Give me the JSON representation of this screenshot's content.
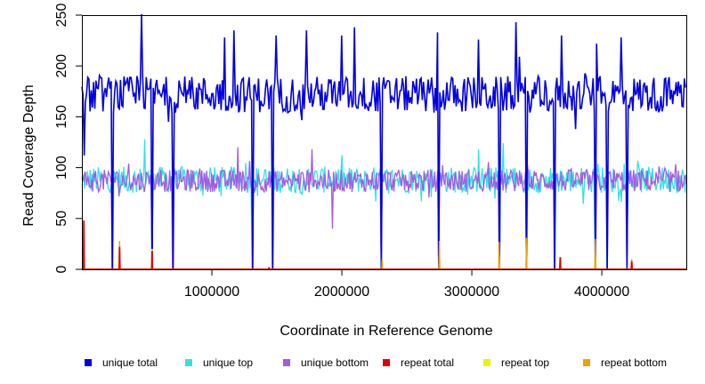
{
  "chart_data": {
    "type": "line",
    "title": "",
    "xlabel": "Coordinate in Reference Genome",
    "ylabel": "Read Coverage Depth",
    "xlim": [
      0,
      4650000
    ],
    "ylim": [
      0,
      250
    ],
    "xticks": [
      1000000,
      2000000,
      3000000,
      4000000
    ],
    "xtick_labels": [
      "1000000",
      "2000000",
      "3000000",
      "4000000"
    ],
    "yticks": [
      0,
      50,
      100,
      150,
      200,
      250
    ],
    "ytick_labels": [
      "0",
      "50",
      "100",
      "150",
      "200",
      "250"
    ],
    "grid": false,
    "legend_position": "bottom",
    "series": [
      {
        "name": "unique total",
        "color": "#0000e0",
        "base": 172,
        "jitter": 18,
        "period": 9000,
        "dips": [
          {
            "x": 20000,
            "y": 112
          },
          {
            "x": 235000,
            "y": 0
          },
          {
            "x": 540000,
            "y": 0
          },
          {
            "x": 700000,
            "y": 0
          },
          {
            "x": 1310000,
            "y": 0
          },
          {
            "x": 1470000,
            "y": 0
          },
          {
            "x": 2300000,
            "y": 0
          },
          {
            "x": 2745000,
            "y": 0
          },
          {
            "x": 3210000,
            "y": 0
          },
          {
            "x": 3420000,
            "y": 0
          },
          {
            "x": 3640000,
            "y": 0
          },
          {
            "x": 3950000,
            "y": 0
          },
          {
            "x": 4040000,
            "y": 0
          },
          {
            "x": 4195000,
            "y": 0
          }
        ],
        "peaks": [
          {
            "x": 460000,
            "y": 251
          },
          {
            "x": 1100000,
            "y": 228
          },
          {
            "x": 1170000,
            "y": 235
          },
          {
            "x": 1490000,
            "y": 230
          },
          {
            "x": 1730000,
            "y": 235
          },
          {
            "x": 2000000,
            "y": 230
          },
          {
            "x": 2100000,
            "y": 238
          },
          {
            "x": 2740000,
            "y": 233
          },
          {
            "x": 3050000,
            "y": 226
          },
          {
            "x": 3340000,
            "y": 243
          },
          {
            "x": 3690000,
            "y": 230
          },
          {
            "x": 3960000,
            "y": 222
          },
          {
            "x": 4150000,
            "y": 228
          }
        ]
      },
      {
        "name": "unique top",
        "color": "#33e0e8",
        "base": 88,
        "jitter": 13,
        "period": 7000,
        "dips": [
          {
            "x": 235000,
            "y": 0
          },
          {
            "x": 540000,
            "y": 0
          },
          {
            "x": 700000,
            "y": 0
          },
          {
            "x": 1310000,
            "y": 0
          },
          {
            "x": 1470000,
            "y": 0
          },
          {
            "x": 2300000,
            "y": 0
          },
          {
            "x": 2745000,
            "y": 0
          },
          {
            "x": 3210000,
            "y": 0
          },
          {
            "x": 3420000,
            "y": 0
          },
          {
            "x": 3640000,
            "y": 0
          },
          {
            "x": 3950000,
            "y": 0
          },
          {
            "x": 4040000,
            "y": 0
          },
          {
            "x": 4195000,
            "y": 0
          }
        ],
        "peaks": [
          {
            "x": 480000,
            "y": 128
          },
          {
            "x": 3050000,
            "y": 118
          },
          {
            "x": 3240000,
            "y": 124
          }
        ]
      },
      {
        "name": "unique bottom",
        "color": "#a45ae0",
        "base": 87,
        "jitter": 11,
        "period": 7500,
        "dips": [
          {
            "x": 235000,
            "y": 0
          },
          {
            "x": 540000,
            "y": 0
          },
          {
            "x": 700000,
            "y": 0
          },
          {
            "x": 1310000,
            "y": 0
          },
          {
            "x": 1470000,
            "y": 0
          },
          {
            "x": 1930000,
            "y": 40
          },
          {
            "x": 2300000,
            "y": 0
          },
          {
            "x": 2745000,
            "y": 0
          },
          {
            "x": 3210000,
            "y": 0
          },
          {
            "x": 3420000,
            "y": 0
          },
          {
            "x": 3640000,
            "y": 0
          },
          {
            "x": 3950000,
            "y": 0
          },
          {
            "x": 4040000,
            "y": 0
          },
          {
            "x": 4195000,
            "y": 0
          }
        ],
        "peaks": [
          {
            "x": 1200000,
            "y": 120
          },
          {
            "x": 1770000,
            "y": 118
          }
        ]
      },
      {
        "name": "repeat total",
        "color": "#e00000",
        "baseline": 0,
        "spikes": [
          {
            "x": 15000,
            "y": 48
          },
          {
            "x": 290000,
            "y": 22
          },
          {
            "x": 540000,
            "y": 18
          },
          {
            "x": 1440000,
            "y": 2
          },
          {
            "x": 3680000,
            "y": 12
          },
          {
            "x": 4230000,
            "y": 8
          }
        ]
      },
      {
        "name": "repeat top",
        "color": "#f0f000",
        "baseline": 0,
        "spikes": [
          {
            "x": 15000,
            "y": 12
          },
          {
            "x": 290000,
            "y": 14
          },
          {
            "x": 540000,
            "y": 20
          },
          {
            "x": 2750000,
            "y": 14
          },
          {
            "x": 3210000,
            "y": 14
          },
          {
            "x": 3420000,
            "y": 14
          },
          {
            "x": 3950000,
            "y": 14
          }
        ]
      },
      {
        "name": "repeat bottom",
        "color": "#f0a000",
        "baseline": 0,
        "spikes": [
          {
            "x": 15000,
            "y": 25
          },
          {
            "x": 290000,
            "y": 28
          },
          {
            "x": 540000,
            "y": 15
          },
          {
            "x": 2310000,
            "y": 10
          },
          {
            "x": 2750000,
            "y": 28
          },
          {
            "x": 3210000,
            "y": 27
          },
          {
            "x": 3420000,
            "y": 31
          },
          {
            "x": 3680000,
            "y": 8
          },
          {
            "x": 3950000,
            "y": 30
          },
          {
            "x": 4230000,
            "y": 10
          }
        ]
      }
    ]
  }
}
